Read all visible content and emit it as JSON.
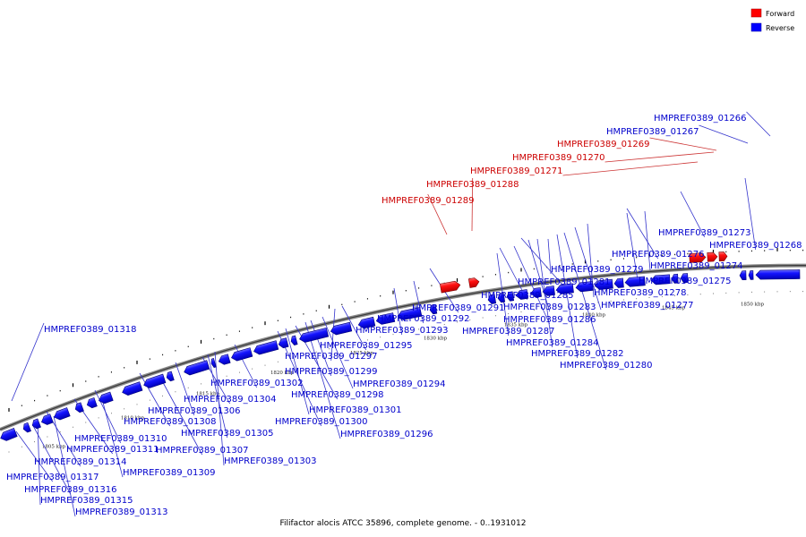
{
  "caption": "Filifactor alocis ATCC 35896, complete genome. - 0..1931012",
  "legend": {
    "forward": {
      "label": "Forward",
      "color": "#ff0000"
    },
    "reverse": {
      "label": "Reverse",
      "color": "#0000ff"
    }
  },
  "ticks": [
    "1805 kbp",
    "1810 kbp",
    "1815 kbp",
    "1820 kbp",
    "1825 kbp",
    "1830 kbp",
    "1835 kbp",
    "1840 kbp",
    "1845 kbp",
    "1850 kbp"
  ],
  "forward_labels": [
    "HMPREF0389_01269",
    "HMPREF0389_01270",
    "HMPREF0389_01271",
    "HMPREF0389_01288",
    "HMPREF0389_01289"
  ],
  "reverse_labels": [
    "HMPREF0389_01266",
    "HMPREF0389_01267",
    "HMPREF0389_01273",
    "HMPREF0389_01268",
    "HMPREF0389_01276",
    "HMPREF0389_01274",
    "HMPREF0389_01279",
    "HMPREF0389_01275",
    "HMPREF0389_01281",
    "HMPREF0389_01278",
    "HMPREF0389_01285",
    "HMPREF0389_01277",
    "HMPREF0389_01283",
    "HMPREF0389_01291",
    "HMPREF0389_01292",
    "HMPREF0389_01286",
    "HMPREF0389_01293",
    "HMPREF0389_01287",
    "HMPREF0389_01284",
    "HMPREF0389_01282",
    "HMPREF0389_01280",
    "HMPREF0389_01295",
    "HMPREF0389_01297",
    "HMPREF0389_01294",
    "HMPREF0389_01299",
    "HMPREF0389_01302",
    "HMPREF0389_01298",
    "HMPREF0389_01304",
    "HMPREF0389_01301",
    "HMPREF0389_01306",
    "HMPREF0389_01300",
    "HMPREF0389_01308",
    "HMPREF0389_01296",
    "HMPREF0389_01305",
    "HMPREF0389_01310",
    "HMPREF0389_01307",
    "HMPREF0389_01311",
    "HMPREF0389_01303",
    "HMPREF0389_01314",
    "HMPREF0389_01309",
    "HMPREF0389_01317",
    "HMPREF0389_01316",
    "HMPREF0389_01315",
    "HMPREF0389_01313",
    "HMPREF0389_01318"
  ]
}
